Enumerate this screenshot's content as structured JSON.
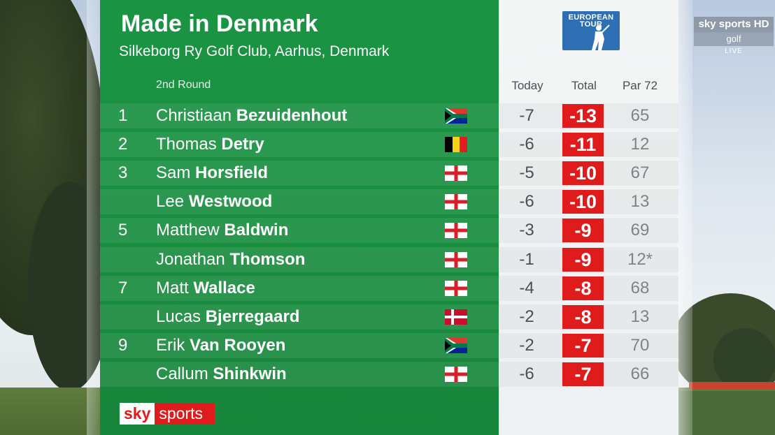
{
  "header": {
    "title": "Made in Denmark",
    "subtitle": "Silkeborg Ry Golf Club, Aarhus, Denmark",
    "round_label": "2nd Round"
  },
  "columns": {
    "today": "Today",
    "total": "Total",
    "par": "Par 72"
  },
  "logo": {
    "line1": "EUROPEAN",
    "line2": "TOUR"
  },
  "rows": [
    {
      "pos": "1",
      "first": "Christiaan",
      "last": "Bezuidenhout",
      "flag": "south-africa",
      "today": "-7",
      "total": "-13",
      "par": "65"
    },
    {
      "pos": "2",
      "first": "Thomas",
      "last": "Detry",
      "flag": "belgium",
      "today": "-6",
      "total": "-11",
      "par": "12"
    },
    {
      "pos": "3",
      "first": "Sam",
      "last": "Horsfield",
      "flag": "england",
      "today": "-5",
      "total": "-10",
      "par": "67"
    },
    {
      "pos": "",
      "first": "Lee",
      "last": "Westwood",
      "flag": "england",
      "today": "-6",
      "total": "-10",
      "par": "13"
    },
    {
      "pos": "5",
      "first": "Matthew",
      "last": "Baldwin",
      "flag": "england",
      "today": "-3",
      "total": "-9",
      "par": "69"
    },
    {
      "pos": "",
      "first": "Jonathan",
      "last": "Thomson",
      "flag": "england",
      "today": "-1",
      "total": "-9",
      "par": "12*"
    },
    {
      "pos": "7",
      "first": "Matt",
      "last": "Wallace",
      "flag": "england",
      "today": "-4",
      "total": "-8",
      "par": "68"
    },
    {
      "pos": "",
      "first": "Lucas",
      "last": "Bjerregaard",
      "flag": "denmark",
      "today": "-2",
      "total": "-8",
      "par": "13"
    },
    {
      "pos": "9",
      "first": "Erik",
      "last": "Van Rooyen",
      "flag": "south-africa",
      "today": "-2",
      "total": "-7",
      "par": "70"
    },
    {
      "pos": "",
      "first": "Callum",
      "last": "Shinkwin",
      "flag": "england",
      "today": "-6",
      "total": "-7",
      "par": "66"
    }
  ],
  "brand": {
    "sky": "sky",
    "sports": "sports"
  },
  "channel": {
    "name": "sky sports HD",
    "sub": "golf",
    "live": "LIVE"
  },
  "colors": {
    "board_green": "#1a9442",
    "total_red": "#e01b1b",
    "logo_blue": "#2d6fb2"
  }
}
